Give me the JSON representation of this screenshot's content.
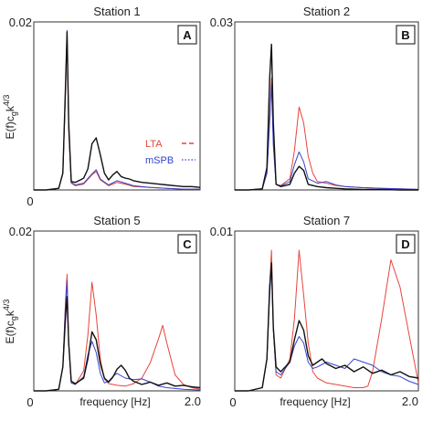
{
  "figure": {
    "ylabel": "E(f)c",
    "ylabel_sub": "g",
    "ylabel_tail": "k",
    "ylabel_sup": "4/3",
    "xlabel": "frequency [Hz]",
    "x_min_label": "0",
    "x_max_label": "2.0"
  },
  "colors": {
    "black": "#111111",
    "lta": "#e8443a",
    "mspb": "#3344cc",
    "purple": "#9a4fc8",
    "frame": "#333333"
  },
  "chart_data": [
    {
      "type": "line",
      "title": "Station 1",
      "panel_letter": "A",
      "ytick_top": "0.02",
      "ylim": [
        0,
        0.02
      ],
      "xlim": [
        0,
        2.0
      ],
      "legend": {
        "placement": "right",
        "entries": [
          "LTA",
          "mSPB"
        ]
      },
      "series": [
        {
          "name": "",
          "color": "black",
          "x": [
            0.0,
            0.15,
            0.3,
            0.35,
            0.38,
            0.4,
            0.42,
            0.45,
            0.5,
            0.6,
            0.65,
            0.7,
            0.75,
            0.8,
            0.85,
            0.9,
            0.95,
            1.0,
            1.05,
            1.1,
            1.15,
            1.2,
            1.3,
            1.4,
            1.5,
            1.6,
            1.7,
            1.8,
            1.9,
            2.0
          ],
          "y": [
            0.0,
            0.0,
            0.0002,
            0.002,
            0.012,
            0.0188,
            0.008,
            0.001,
            0.0009,
            0.0014,
            0.0025,
            0.0055,
            0.0062,
            0.0042,
            0.002,
            0.0012,
            0.0018,
            0.0022,
            0.0016,
            0.0014,
            0.0013,
            0.0011,
            0.0009,
            0.0008,
            0.0007,
            0.0006,
            0.0005,
            0.0004,
            0.0004,
            0.0003
          ]
        },
        {
          "name": "LTA",
          "color": "lta",
          "x": [
            0.0,
            0.15,
            0.3,
            0.35,
            0.38,
            0.4,
            0.42,
            0.45,
            0.5,
            0.6,
            0.7,
            0.75,
            0.8,
            0.9,
            1.0,
            1.1,
            1.2,
            1.4,
            1.6,
            1.8,
            2.0
          ],
          "y": [
            0.0,
            0.0,
            0.0002,
            0.002,
            0.011,
            0.0184,
            0.007,
            0.0008,
            0.0005,
            0.0007,
            0.0018,
            0.0022,
            0.0012,
            0.0005,
            0.0009,
            0.0007,
            0.0004,
            0.0003,
            0.0002,
            0.0001,
            0.0001
          ]
        },
        {
          "name": "mSPB",
          "color": "mspb",
          "x": [
            0.0,
            0.15,
            0.3,
            0.35,
            0.38,
            0.4,
            0.42,
            0.45,
            0.5,
            0.6,
            0.7,
            0.75,
            0.8,
            0.9,
            1.0,
            1.1,
            1.2,
            1.4,
            1.6,
            1.8,
            2.0
          ],
          "y": [
            0.0,
            0.0,
            0.0002,
            0.002,
            0.0115,
            0.019,
            0.0075,
            0.0009,
            0.0006,
            0.0008,
            0.0019,
            0.0024,
            0.0013,
            0.0006,
            0.0011,
            0.0008,
            0.0005,
            0.0003,
            0.0002,
            0.0001,
            0.0001
          ]
        }
      ]
    },
    {
      "type": "line",
      "title": "Station 2",
      "panel_letter": "B",
      "ytick_top": "0.03",
      "ylim": [
        0,
        0.03
      ],
      "xlim": [
        0,
        2.0
      ],
      "series": [
        {
          "name": "",
          "color": "black",
          "x": [
            0.0,
            0.15,
            0.3,
            0.35,
            0.38,
            0.4,
            0.42,
            0.45,
            0.5,
            0.6,
            0.65,
            0.7,
            0.75,
            0.8,
            0.9,
            1.0,
            1.1,
            1.2,
            1.4,
            1.6,
            1.8,
            2.0
          ],
          "y": [
            0.0,
            0.0,
            0.0002,
            0.004,
            0.02,
            0.026,
            0.012,
            0.001,
            0.0006,
            0.001,
            0.003,
            0.0042,
            0.0035,
            0.001,
            0.0006,
            0.0004,
            0.0003,
            0.0002,
            0.0001,
            0.0001,
            0.0,
            0.0
          ]
        },
        {
          "name": "LTA",
          "color": "lta",
          "x": [
            0.0,
            0.15,
            0.3,
            0.35,
            0.38,
            0.4,
            0.42,
            0.45,
            0.5,
            0.6,
            0.65,
            0.7,
            0.75,
            0.8,
            0.85,
            0.9,
            1.0,
            1.1,
            1.2,
            1.4,
            1.6,
            1.8,
            2.0
          ],
          "y": [
            0.0,
            0.0,
            0.0002,
            0.003,
            0.013,
            0.02,
            0.009,
            0.001,
            0.0008,
            0.002,
            0.007,
            0.0148,
            0.012,
            0.006,
            0.003,
            0.0015,
            0.0012,
            0.0008,
            0.0006,
            0.0004,
            0.0003,
            0.0002,
            0.0001
          ]
        },
        {
          "name": "mSPB",
          "color": "mspb",
          "x": [
            0.0,
            0.15,
            0.3,
            0.35,
            0.38,
            0.4,
            0.42,
            0.45,
            0.5,
            0.6,
            0.65,
            0.7,
            0.75,
            0.8,
            0.9,
            1.0,
            1.1,
            1.2,
            1.4,
            1.6,
            1.8,
            2.0
          ],
          "y": [
            0.0,
            0.0,
            0.0002,
            0.003,
            0.012,
            0.019,
            0.008,
            0.001,
            0.0007,
            0.0015,
            0.0045,
            0.0068,
            0.005,
            0.002,
            0.0012,
            0.0015,
            0.0009,
            0.0006,
            0.0004,
            0.0003,
            0.0002,
            0.0001
          ]
        }
      ]
    },
    {
      "type": "line",
      "title": "Station 5",
      "panel_letter": "C",
      "ytick_top": "0.02",
      "ylim": [
        0,
        0.02
      ],
      "xlim": [
        0,
        2.0
      ],
      "series": [
        {
          "name": "",
          "color": "black",
          "x": [
            0.0,
            0.15,
            0.3,
            0.35,
            0.38,
            0.4,
            0.42,
            0.45,
            0.5,
            0.6,
            0.65,
            0.7,
            0.75,
            0.8,
            0.85,
            0.9,
            0.95,
            1.0,
            1.05,
            1.1,
            1.15,
            1.2,
            1.3,
            1.4,
            1.5,
            1.6,
            1.7,
            1.8,
            1.9,
            2.0
          ],
          "y": [
            0.0,
            0.0,
            0.0002,
            0.003,
            0.009,
            0.0118,
            0.006,
            0.0012,
            0.0009,
            0.0016,
            0.004,
            0.0074,
            0.0064,
            0.0034,
            0.0016,
            0.0011,
            0.0017,
            0.0027,
            0.0032,
            0.0026,
            0.0016,
            0.0012,
            0.0008,
            0.0011,
            0.0007,
            0.001,
            0.0006,
            0.0007,
            0.0005,
            0.0004
          ]
        },
        {
          "name": "LTA",
          "color": "lta",
          "x": [
            0.0,
            0.15,
            0.3,
            0.35,
            0.38,
            0.4,
            0.42,
            0.45,
            0.5,
            0.6,
            0.65,
            0.7,
            0.75,
            0.8,
            0.85,
            0.9,
            1.0,
            1.1,
            1.2,
            1.3,
            1.4,
            1.5,
            1.55,
            1.6,
            1.7,
            1.8,
            1.9,
            2.0
          ],
          "y": [
            0.0,
            0.0,
            0.0002,
            0.003,
            0.011,
            0.0146,
            0.006,
            0.001,
            0.0008,
            0.0025,
            0.007,
            0.0136,
            0.0095,
            0.004,
            0.0015,
            0.0009,
            0.0007,
            0.0006,
            0.0009,
            0.0016,
            0.0035,
            0.0065,
            0.0082,
            0.006,
            0.002,
            0.0008,
            0.0004,
            0.0002
          ]
        },
        {
          "name": "mSPB",
          "color": "mspb",
          "x": [
            0.0,
            0.15,
            0.3,
            0.35,
            0.38,
            0.4,
            0.42,
            0.45,
            0.5,
            0.6,
            0.65,
            0.7,
            0.75,
            0.8,
            0.85,
            0.9,
            0.95,
            1.0,
            1.1,
            1.2,
            1.3,
            1.4,
            1.5,
            1.6,
            1.8,
            2.0
          ],
          "y": [
            0.0,
            0.0,
            0.0002,
            0.003,
            0.0105,
            0.0138,
            0.006,
            0.001,
            0.0008,
            0.0018,
            0.0045,
            0.0062,
            0.0048,
            0.0022,
            0.001,
            0.0012,
            0.0018,
            0.0022,
            0.0016,
            0.0014,
            0.0015,
            0.0011,
            0.0006,
            0.0004,
            0.0002,
            0.0001
          ]
        }
      ]
    },
    {
      "type": "line",
      "title": "Station 7",
      "panel_letter": "D",
      "ytick_top": "0.01",
      "ylim": [
        0,
        0.01
      ],
      "xlim": [
        0,
        2.0
      ],
      "series": [
        {
          "name": "",
          "color": "black",
          "x": [
            0.0,
            0.15,
            0.3,
            0.35,
            0.38,
            0.4,
            0.42,
            0.45,
            0.5,
            0.6,
            0.65,
            0.7,
            0.75,
            0.8,
            0.85,
            0.9,
            0.95,
            1.0,
            1.1,
            1.2,
            1.3,
            1.4,
            1.5,
            1.6,
            1.7,
            1.8,
            1.9,
            2.0
          ],
          "y": [
            0.0,
            0.0,
            0.0002,
            0.002,
            0.0065,
            0.008,
            0.004,
            0.0015,
            0.0012,
            0.0018,
            0.0032,
            0.0044,
            0.0038,
            0.0022,
            0.0016,
            0.0018,
            0.002,
            0.0017,
            0.0014,
            0.0016,
            0.0012,
            0.0015,
            0.0011,
            0.0013,
            0.001,
            0.0012,
            0.0009,
            0.0008
          ]
        },
        {
          "name": "LTA",
          "color": "lta",
          "x": [
            0.0,
            0.15,
            0.3,
            0.35,
            0.38,
            0.4,
            0.42,
            0.45,
            0.5,
            0.6,
            0.65,
            0.7,
            0.75,
            0.8,
            0.85,
            0.9,
            1.0,
            1.1,
            1.2,
            1.3,
            1.4,
            1.45,
            1.5,
            1.6,
            1.7,
            1.8,
            1.9,
            2.0
          ],
          "y": [
            0.0,
            0.0,
            0.0002,
            0.002,
            0.0065,
            0.0088,
            0.004,
            0.001,
            0.0008,
            0.002,
            0.0045,
            0.0088,
            0.006,
            0.003,
            0.0012,
            0.0008,
            0.0005,
            0.0004,
            0.0003,
            0.0002,
            0.0002,
            0.0003,
            0.0012,
            0.0045,
            0.0082,
            0.0065,
            0.0035,
            0.0005
          ]
        },
        {
          "name": "mSPB",
          "color": "mspb",
          "x": [
            0.0,
            0.15,
            0.3,
            0.35,
            0.38,
            0.4,
            0.42,
            0.45,
            0.5,
            0.6,
            0.65,
            0.7,
            0.75,
            0.8,
            0.85,
            0.9,
            1.0,
            1.1,
            1.2,
            1.3,
            1.4,
            1.5,
            1.6,
            1.7,
            1.8,
            1.9,
            2.0
          ],
          "y": [
            0.0,
            0.0,
            0.0002,
            0.002,
            0.006,
            0.0078,
            0.0038,
            0.0012,
            0.001,
            0.0018,
            0.0028,
            0.0034,
            0.003,
            0.0018,
            0.0014,
            0.0015,
            0.0018,
            0.0016,
            0.0014,
            0.002,
            0.0018,
            0.0016,
            0.0012,
            0.001,
            0.0009,
            0.0006,
            0.0004
          ]
        }
      ]
    }
  ]
}
